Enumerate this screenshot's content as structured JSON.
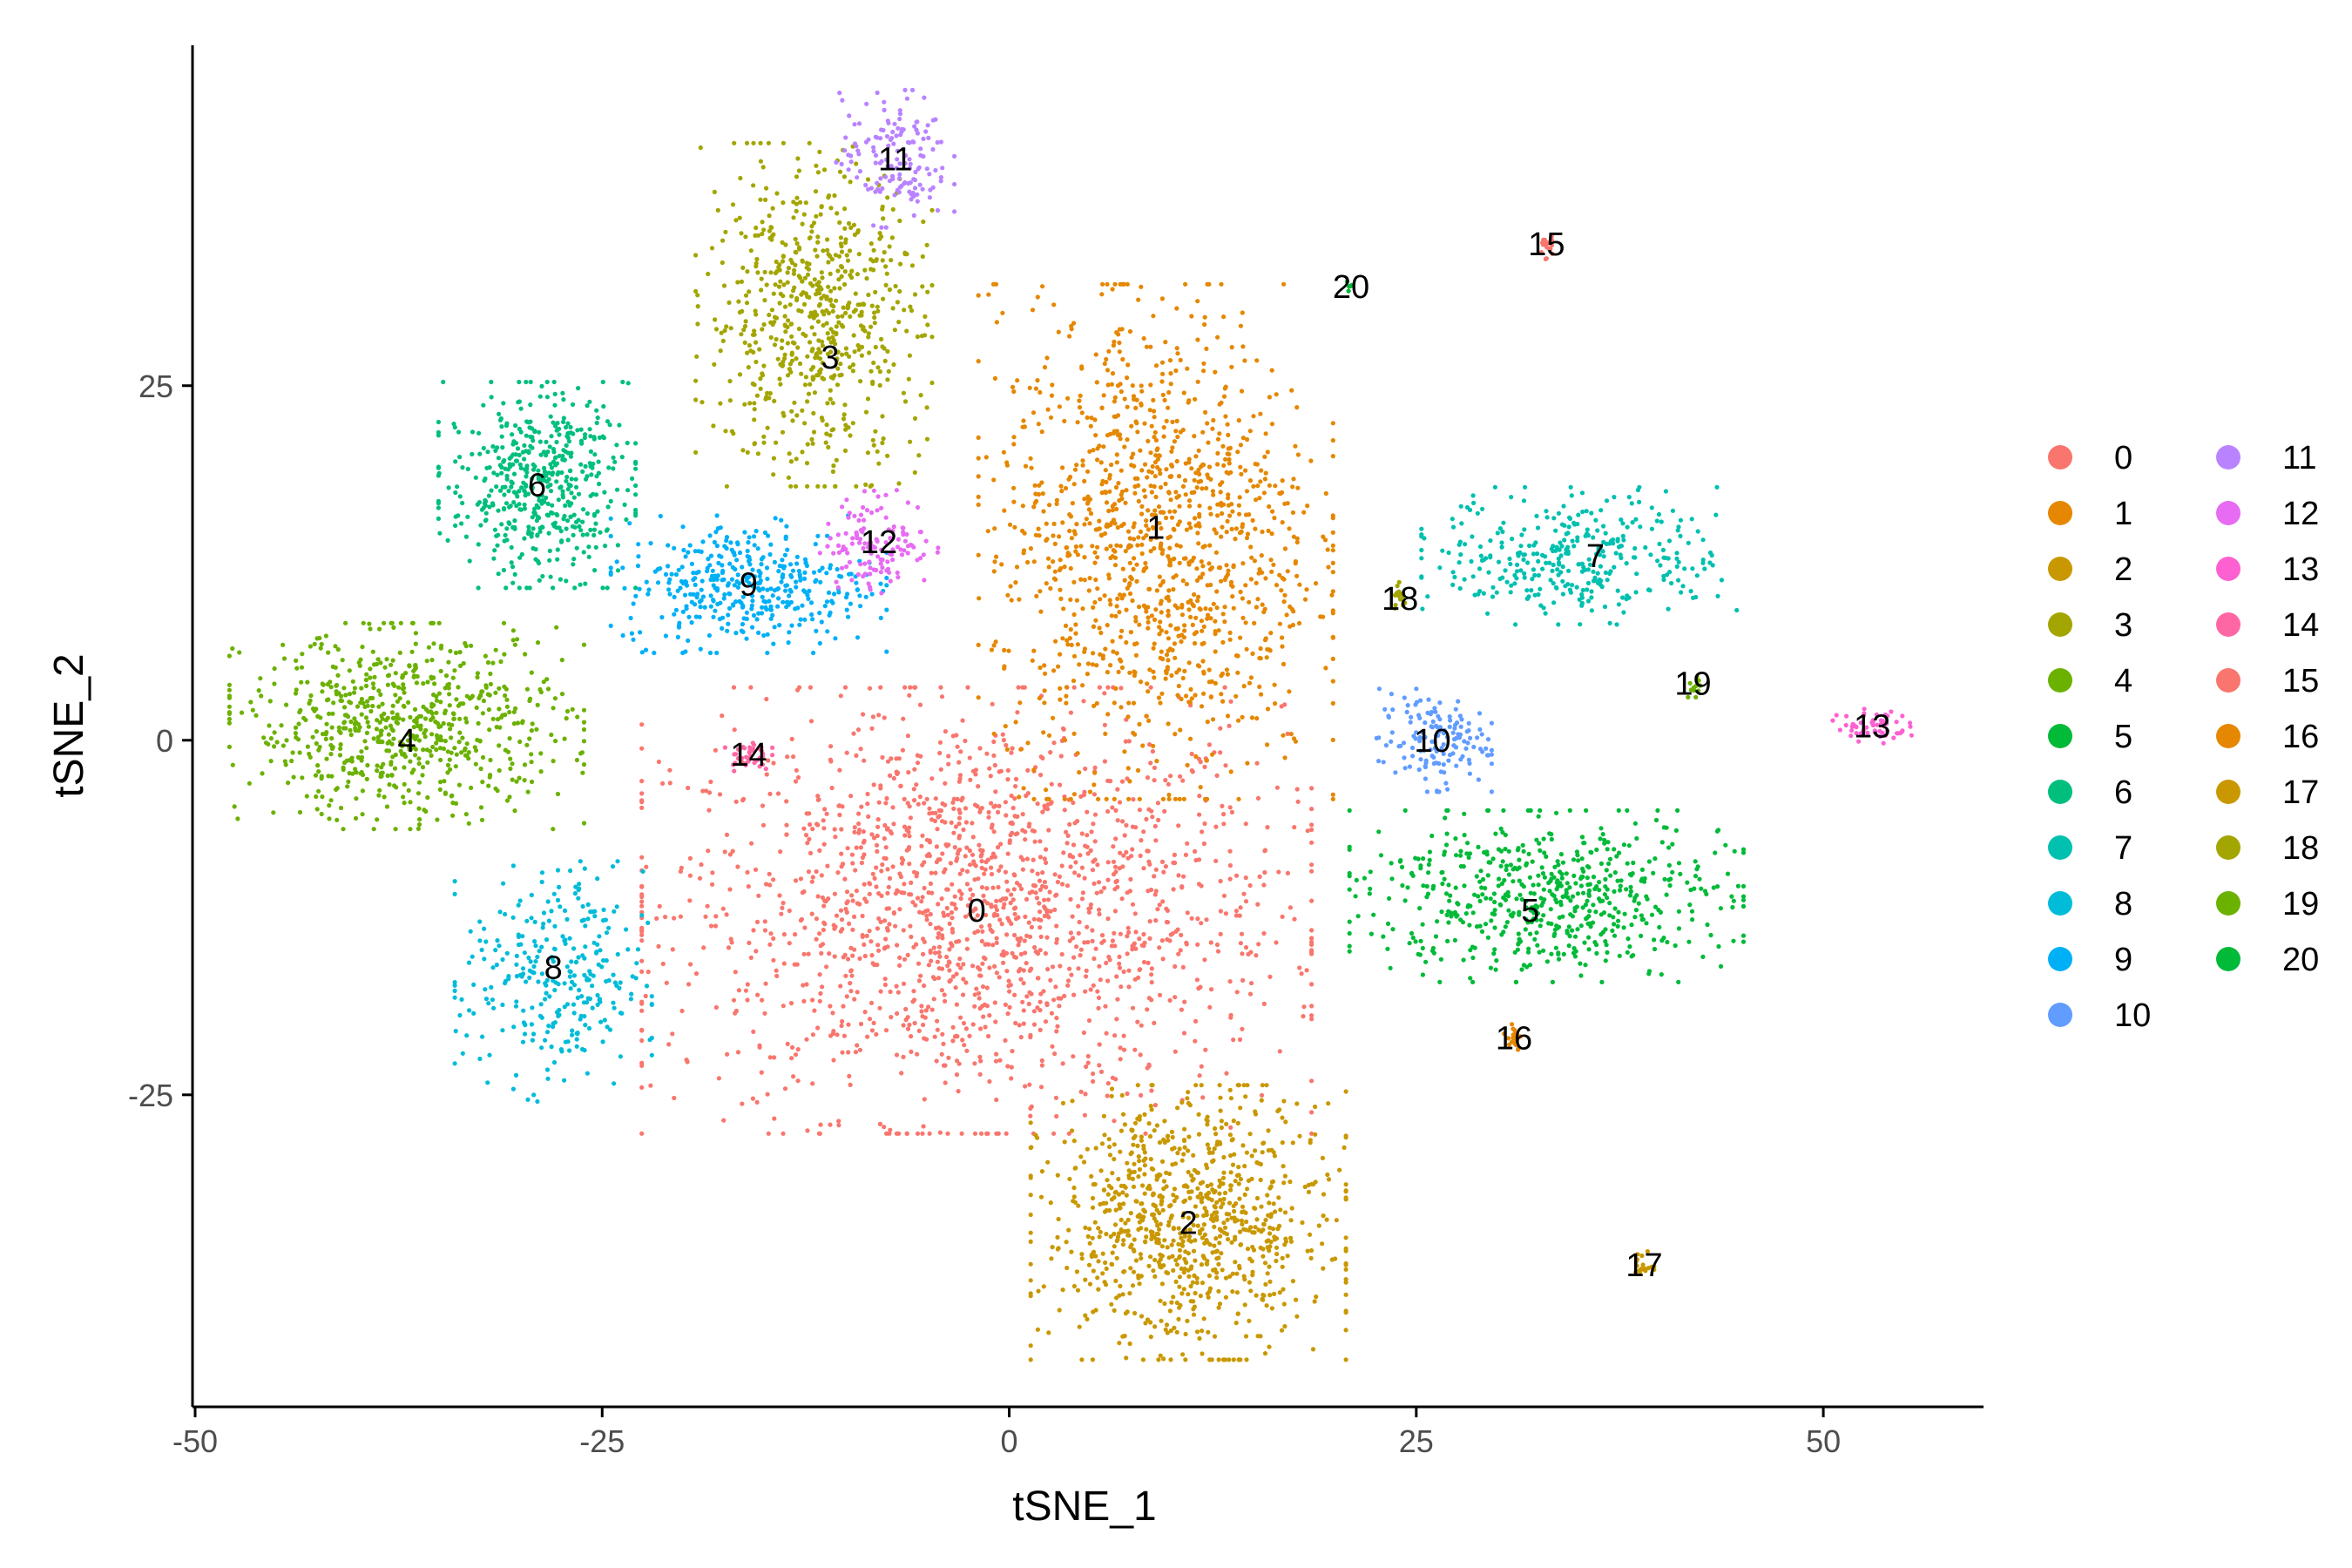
{
  "chart_data": {
    "type": "scatter",
    "xlabel": "tSNE_1",
    "ylabel": "tSNE_2",
    "xlim": [
      -50,
      60
    ],
    "ylim": [
      -47,
      49
    ],
    "x_ticks": [
      -50,
      -25,
      0,
      25,
      50
    ],
    "x_tick_labels": [
      "-50",
      "-25",
      "0",
      "25",
      "50"
    ],
    "y_ticks": [
      -25,
      0,
      25
    ],
    "y_tick_labels": [
      "-25",
      "0",
      "25"
    ],
    "grid": false,
    "legend_position": "right",
    "legend_columns": 2,
    "clusters": [
      {
        "name": "0",
        "color": "#F8766D",
        "center": [
          -2,
          -12
        ],
        "spread": [
          17,
          13
        ],
        "points": 1700,
        "label_pos": [
          -2,
          -12
        ]
      },
      {
        "name": "1",
        "color": "#E58700",
        "center": [
          9,
          14
        ],
        "spread": [
          9,
          15
        ],
        "points": 1200,
        "label_pos": [
          9,
          15
        ]
      },
      {
        "name": "2",
        "color": "#C99800",
        "center": [
          11,
          -34
        ],
        "spread": [
          8,
          8
        ],
        "points": 900,
        "label_pos": [
          11,
          -34
        ]
      },
      {
        "name": "3",
        "color": "#A3A500",
        "center": [
          -12,
          30
        ],
        "spread": [
          6,
          10
        ],
        "points": 650,
        "label_pos": [
          -11,
          27
        ]
      },
      {
        "name": "4",
        "color": "#6BB100",
        "center": [
          -37,
          1
        ],
        "spread": [
          9,
          6
        ],
        "points": 700,
        "label_pos": [
          -37,
          0
        ]
      },
      {
        "name": "5",
        "color": "#00BA38",
        "center": [
          33,
          -11
        ],
        "spread": [
          10,
          5
        ],
        "points": 600,
        "label_pos": [
          32,
          -12
        ]
      },
      {
        "name": "6",
        "color": "#00BF7D",
        "center": [
          -29,
          18
        ],
        "spread": [
          5,
          6
        ],
        "points": 500,
        "label_pos": [
          -29,
          18
        ]
      },
      {
        "name": "7",
        "color": "#00C0AF",
        "center": [
          35,
          13
        ],
        "spread": [
          8,
          4
        ],
        "points": 350,
        "label_pos": [
          36,
          13
        ]
      },
      {
        "name": "8",
        "color": "#00BCD8",
        "center": [
          -28,
          -17
        ],
        "spread": [
          5,
          7
        ],
        "points": 300,
        "label_pos": [
          -28,
          -16
        ]
      },
      {
        "name": "9",
        "color": "#00B0F6",
        "center": [
          -16,
          11
        ],
        "spread": [
          7,
          4
        ],
        "points": 400,
        "label_pos": [
          -16,
          11
        ]
      },
      {
        "name": "10",
        "color": "#619CFF",
        "center": [
          26,
          0
        ],
        "spread": [
          3,
          3
        ],
        "points": 150,
        "label_pos": [
          26,
          0
        ]
      },
      {
        "name": "11",
        "color": "#B983FF",
        "center": [
          -7,
          41
        ],
        "spread": [
          3,
          4
        ],
        "points": 150,
        "label_pos": [
          -7,
          41
        ]
      },
      {
        "name": "12",
        "color": "#E76BF3",
        "center": [
          -8,
          14
        ],
        "spread": [
          3,
          3
        ],
        "points": 130,
        "label_pos": [
          -8,
          14
        ]
      },
      {
        "name": "13",
        "color": "#FD61D1",
        "center": [
          53,
          1
        ],
        "spread": [
          2,
          1
        ],
        "points": 60,
        "label_pos": [
          53,
          1
        ]
      },
      {
        "name": "14",
        "color": "#FF67A4",
        "center": [
          -16,
          -1
        ],
        "spread": [
          1.2,
          1
        ],
        "points": 40,
        "label_pos": [
          -16,
          -1
        ]
      },
      {
        "name": "15",
        "color": "#F8766D",
        "center": [
          33,
          35
        ],
        "spread": [
          0.4,
          1
        ],
        "points": 20,
        "label_pos": [
          33,
          35
        ]
      },
      {
        "name": "16",
        "color": "#E58700",
        "center": [
          31,
          -21
        ],
        "spread": [
          0.5,
          1
        ],
        "points": 20,
        "label_pos": [
          31,
          -21
        ]
      },
      {
        "name": "17",
        "color": "#C99800",
        "center": [
          39,
          -37
        ],
        "spread": [
          0.5,
          1
        ],
        "points": 18,
        "label_pos": [
          39,
          -37
        ]
      },
      {
        "name": "18",
        "color": "#A3A500",
        "center": [
          24,
          10
        ],
        "spread": [
          0.4,
          1
        ],
        "points": 15,
        "label_pos": [
          24,
          10
        ]
      },
      {
        "name": "19",
        "color": "#6BB100",
        "center": [
          42,
          4
        ],
        "spread": [
          0.5,
          0.8
        ],
        "points": 12,
        "label_pos": [
          42,
          4
        ]
      },
      {
        "name": "20",
        "color": "#00BA38",
        "center": [
          21,
          32
        ],
        "spread": [
          0.3,
          0.3
        ],
        "points": 5,
        "label_pos": [
          21,
          32
        ]
      }
    ]
  }
}
